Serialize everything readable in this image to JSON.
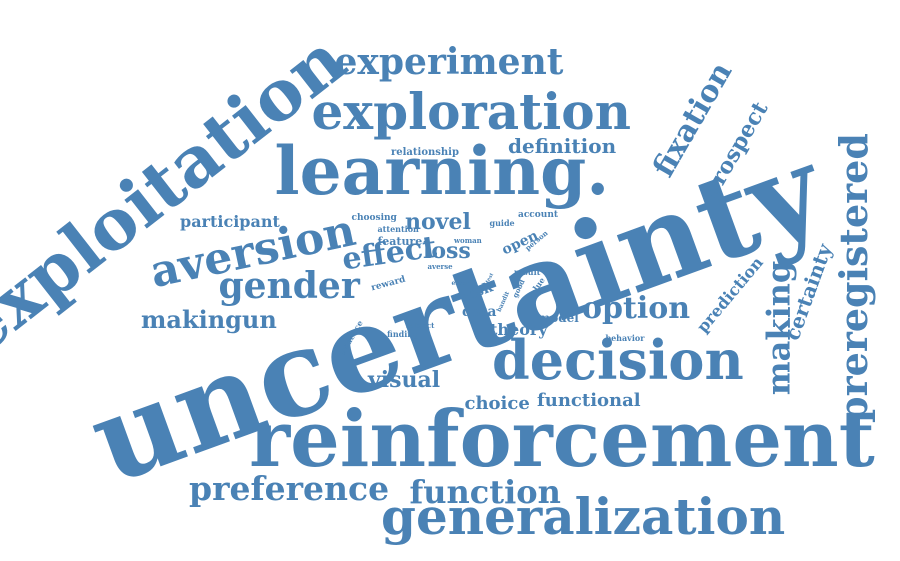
{
  "word_color": "#4a82b5",
  "background_color": "#ffffff",
  "words": [
    {
      "text": "uncertainty"
    },
    {
      "text": "reinforcement"
    },
    {
      "text": "exploitation"
    },
    {
      "text": "learning."
    },
    {
      "text": "exploration"
    },
    {
      "text": "generalization"
    },
    {
      "text": "decision"
    },
    {
      "text": "experiment"
    },
    {
      "text": "aversion"
    },
    {
      "text": "preference"
    },
    {
      "text": "function"
    },
    {
      "text": "gender"
    },
    {
      "text": "preregistered"
    },
    {
      "text": "making"
    },
    {
      "text": "fixation"
    },
    {
      "text": "prospect"
    },
    {
      "text": "certainty"
    },
    {
      "text": "option"
    },
    {
      "text": "effect"
    },
    {
      "text": "makingun"
    },
    {
      "text": "definition"
    },
    {
      "text": "visual"
    },
    {
      "text": "choice"
    },
    {
      "text": "functional"
    },
    {
      "text": "prediction"
    },
    {
      "text": "novel"
    },
    {
      "text": "loss"
    },
    {
      "text": "theory"
    },
    {
      "text": "participant"
    },
    {
      "text": "relationship"
    },
    {
      "text": "data"
    },
    {
      "text": "risk"
    },
    {
      "text": "evidence"
    },
    {
      "text": "reward"
    },
    {
      "text": "model"
    },
    {
      "text": "behavior"
    },
    {
      "text": "choosing"
    },
    {
      "text": "attention"
    },
    {
      "text": "feature"
    },
    {
      "text": "account"
    },
    {
      "text": "guide"
    },
    {
      "text": "open"
    },
    {
      "text": "woman"
    },
    {
      "text": "person"
    },
    {
      "text": "averse"
    },
    {
      "text": "result"
    },
    {
      "text": "finding"
    },
    {
      "text": "subject"
    },
    {
      "text": "error"
    },
    {
      "text": "value"
    },
    {
      "text": "good"
    },
    {
      "text": "bandit"
    },
    {
      "text": "test"
    }
  ]
}
